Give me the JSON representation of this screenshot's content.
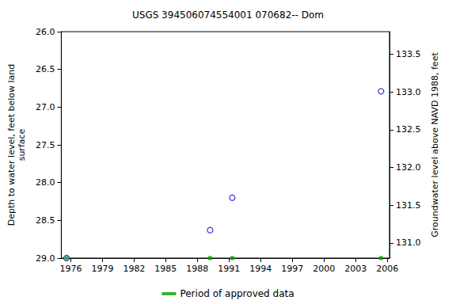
{
  "chart_data": {
    "type": "scatter",
    "title": "USGS 394506074554001 070682-- Dom",
    "y_label": "Depth to water level, feet below land\nsurface",
    "y2_label": "Groundwater level above NAVD 1988, feet",
    "xlim": [
      1975.1,
      2006.2
    ],
    "xticks": [
      1976,
      1979,
      1982,
      1985,
      1988,
      1991,
      1994,
      1997,
      2000,
      2003,
      2006
    ],
    "ylim": [
      26.0,
      29.0
    ],
    "yticks": [
      {
        "value": 26,
        "label": "26.0"
      },
      26.5,
      {
        "value": 27,
        "label": "27.0"
      },
      27.5,
      {
        "value": 28,
        "label": "28.0"
      },
      28.5,
      {
        "value": 29,
        "label": "29.0"
      }
    ],
    "y2lim": [
      130.8,
      133.8
    ],
    "y2ticks": [
      {
        "value": 131,
        "label": "131.0"
      },
      131.5,
      {
        "value": 132,
        "label": "132.0"
      },
      132.5,
      {
        "value": 133,
        "label": "133.0"
      },
      133.5
    ],
    "grid": false,
    "legend": "bottom",
    "series": [
      {
        "color": "#0000cc",
        "marker": "open_circle",
        "x": [
          1975.6,
          1989.2,
          1991.3,
          2005.4
        ],
        "values": [
          29.0,
          28.63,
          28.2,
          26.79
        ]
      },
      {
        "name": "Period of approved data",
        "color": "#00a000",
        "marker": "square",
        "x": [
          1975.6,
          1989.2,
          1991.3,
          2005.4
        ],
        "values": [
          29.0,
          29.0,
          29.0,
          29.0
        ]
      }
    ]
  }
}
